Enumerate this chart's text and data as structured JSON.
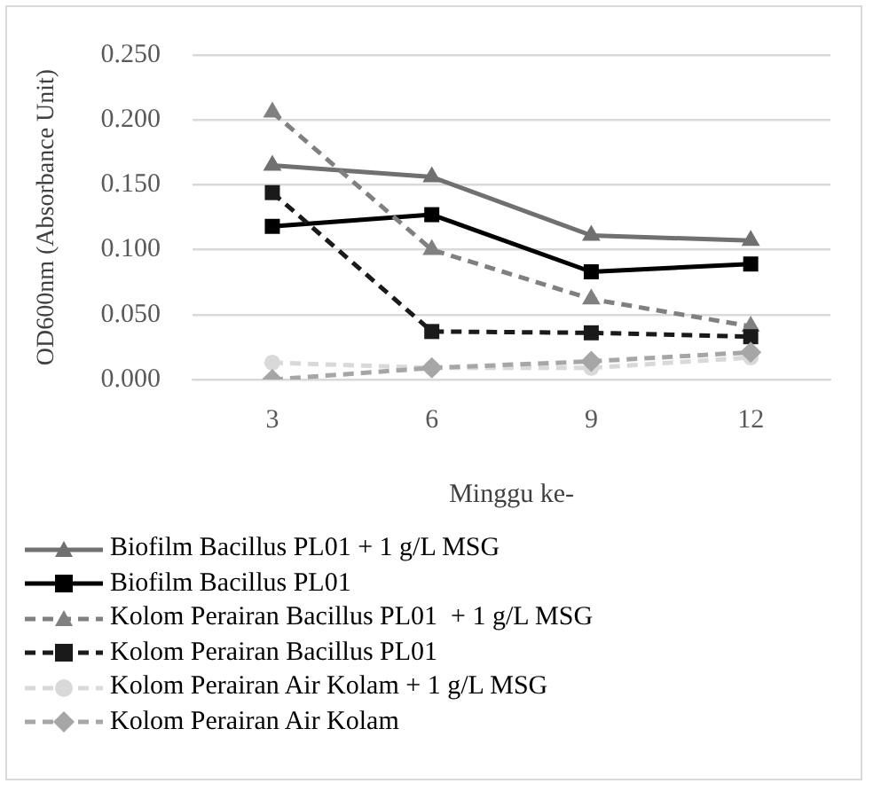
{
  "chart_data": {
    "type": "line",
    "xlabel": "Minggu ke-",
    "ylabel": "OD600nm (Absorbance Unit)",
    "categories": [
      "3",
      "6",
      "9",
      "12"
    ],
    "series": [
      {
        "name": "Biofilm Bacillus PL01 + 1 g/L MSG",
        "color": "#707070",
        "marker": "triangle",
        "line_style": "solid",
        "values": [
          0.165,
          0.156,
          0.111,
          0.107
        ]
      },
      {
        "name": "Biofilm Bacillus PL01",
        "color": "#000000",
        "marker": "square",
        "line_style": "solid",
        "values": [
          0.118,
          0.127,
          0.083,
          0.089
        ]
      },
      {
        "name": "Kolom Perairan Bacillus PL01  + 1 g/L MSG",
        "color": "#808080",
        "marker": "triangle",
        "line_style": "dashed",
        "values": [
          0.206,
          0.1,
          0.062,
          0.041
        ]
      },
      {
        "name": "Kolom Perairan Bacillus PL01",
        "color": "#1a1a1a",
        "marker": "square",
        "line_style": "dashed",
        "values": [
          0.144,
          0.037,
          0.036,
          0.033
        ]
      },
      {
        "name": "Kolom Perairan Air Kolam + 1 g/L MSG",
        "color": "#d9d9d9",
        "marker": "circle",
        "line_style": "dashed",
        "values": [
          0.013,
          0.009,
          0.009,
          0.017
        ]
      },
      {
        "name": "Kolom Perairan Air Kolam",
        "color": "#a6a6a6",
        "marker": "diamond",
        "line_style": "dashed",
        "values": [
          0.0,
          0.009,
          0.014,
          0.021
        ]
      }
    ],
    "ylim": [
      0,
      0.25
    ],
    "yticks": [
      {
        "value": 0,
        "label": "0.000"
      },
      {
        "value": 0.05,
        "label": "0.050"
      },
      {
        "value": 0.1,
        "label": "0.100"
      },
      {
        "value": 0.15,
        "label": "0.150"
      },
      {
        "value": 0.2,
        "label": "0.200"
      },
      {
        "value": 0.25,
        "label": "0.250"
      }
    ],
    "grid": "y",
    "legend": "bottom"
  }
}
